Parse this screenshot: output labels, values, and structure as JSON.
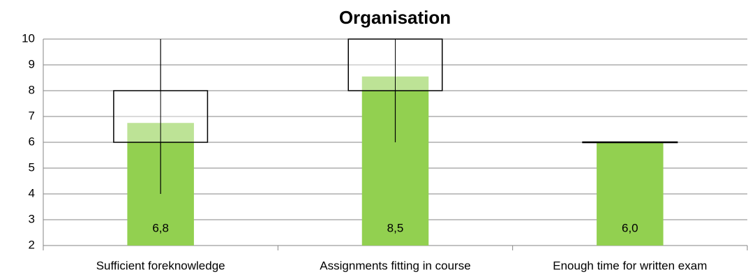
{
  "chart_data": {
    "type": "bar",
    "title": "Organisation",
    "categories": [
      "Sufficient foreknowledge",
      "Assignments fitting in course",
      "Enough time for written exam"
    ],
    "values": [
      6.75,
      8.55,
      6.0
    ],
    "value_labels": [
      "6,8",
      "8,5",
      "6,0"
    ],
    "color": "#92d050",
    "box_low": [
      4,
      6,
      6
    ],
    "box_q1": [
      6,
      8,
      6
    ],
    "box_q3": [
      8,
      10,
      6
    ],
    "box_high": [
      10,
      10,
      6
    ],
    "ylim": [
      2,
      10
    ],
    "yticks": [
      2,
      3,
      4,
      5,
      6,
      7,
      8,
      9,
      10
    ],
    "grid": true
  }
}
